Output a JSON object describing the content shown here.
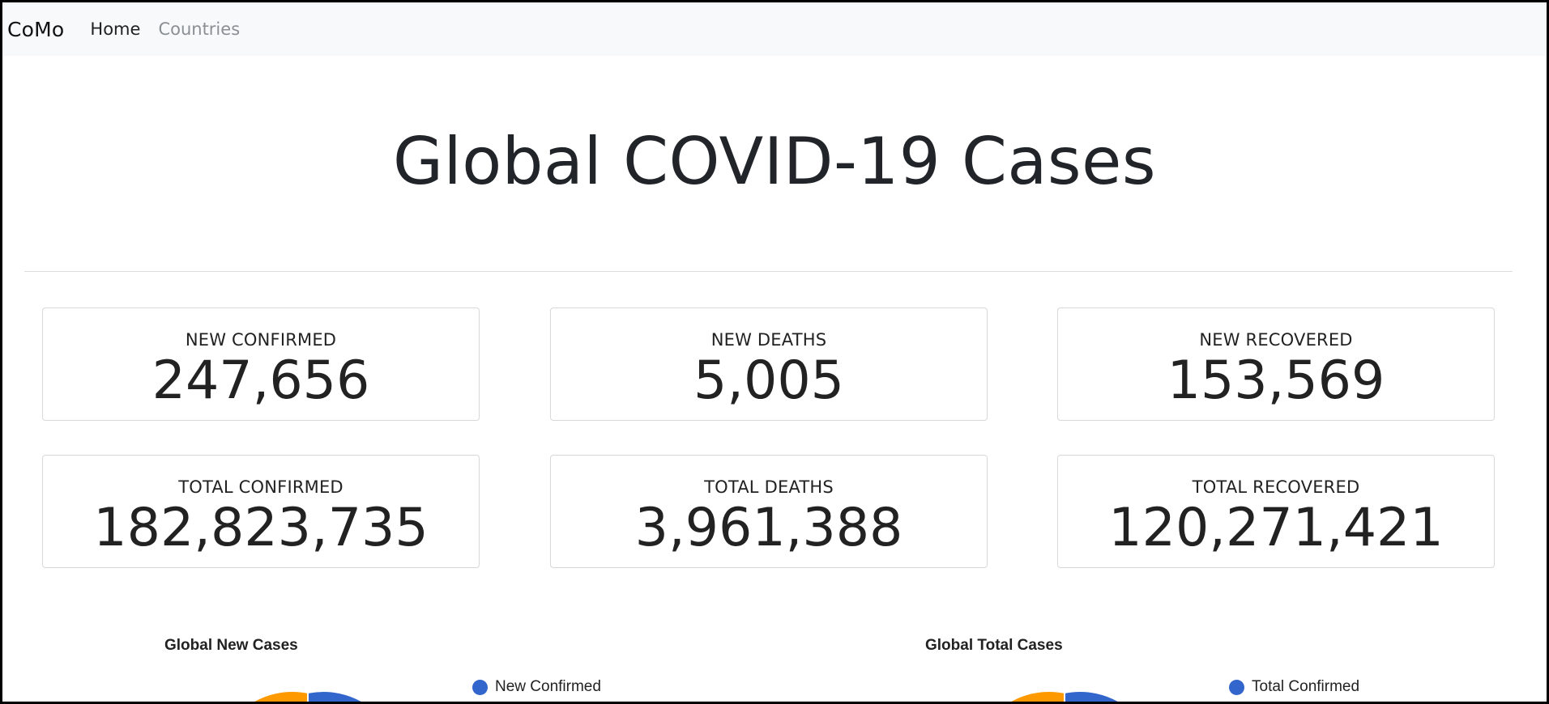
{
  "nav": {
    "brand": "CoMo",
    "links": [
      {
        "label": "Home",
        "active": true
      },
      {
        "label": "Countries",
        "active": false
      }
    ]
  },
  "page_title": "Global COVID-19 Cases",
  "stats": [
    {
      "label": "NEW CONFIRMED",
      "value": "247,656"
    },
    {
      "label": "NEW DEATHS",
      "value": "5,005"
    },
    {
      "label": "NEW RECOVERED",
      "value": "153,569"
    },
    {
      "label": "TOTAL CONFIRMED",
      "value": "182,823,735"
    },
    {
      "label": "TOTAL DEATHS",
      "value": "3,961,388"
    },
    {
      "label": "TOTAL RECOVERED",
      "value": "120,271,421"
    }
  ],
  "colors": {
    "series_blue": "#3366cc",
    "series_orange": "#ff9900",
    "navbar_bg": "#f8f9fa"
  },
  "chart_data": [
    {
      "type": "pie",
      "title": "Global New Cases",
      "legend_visible": [
        "New Confirmed"
      ],
      "legend_position": "right"
    },
    {
      "type": "pie",
      "title": "Global Total Cases",
      "legend_visible": [
        "Total Confirmed"
      ],
      "legend_position": "right"
    }
  ]
}
